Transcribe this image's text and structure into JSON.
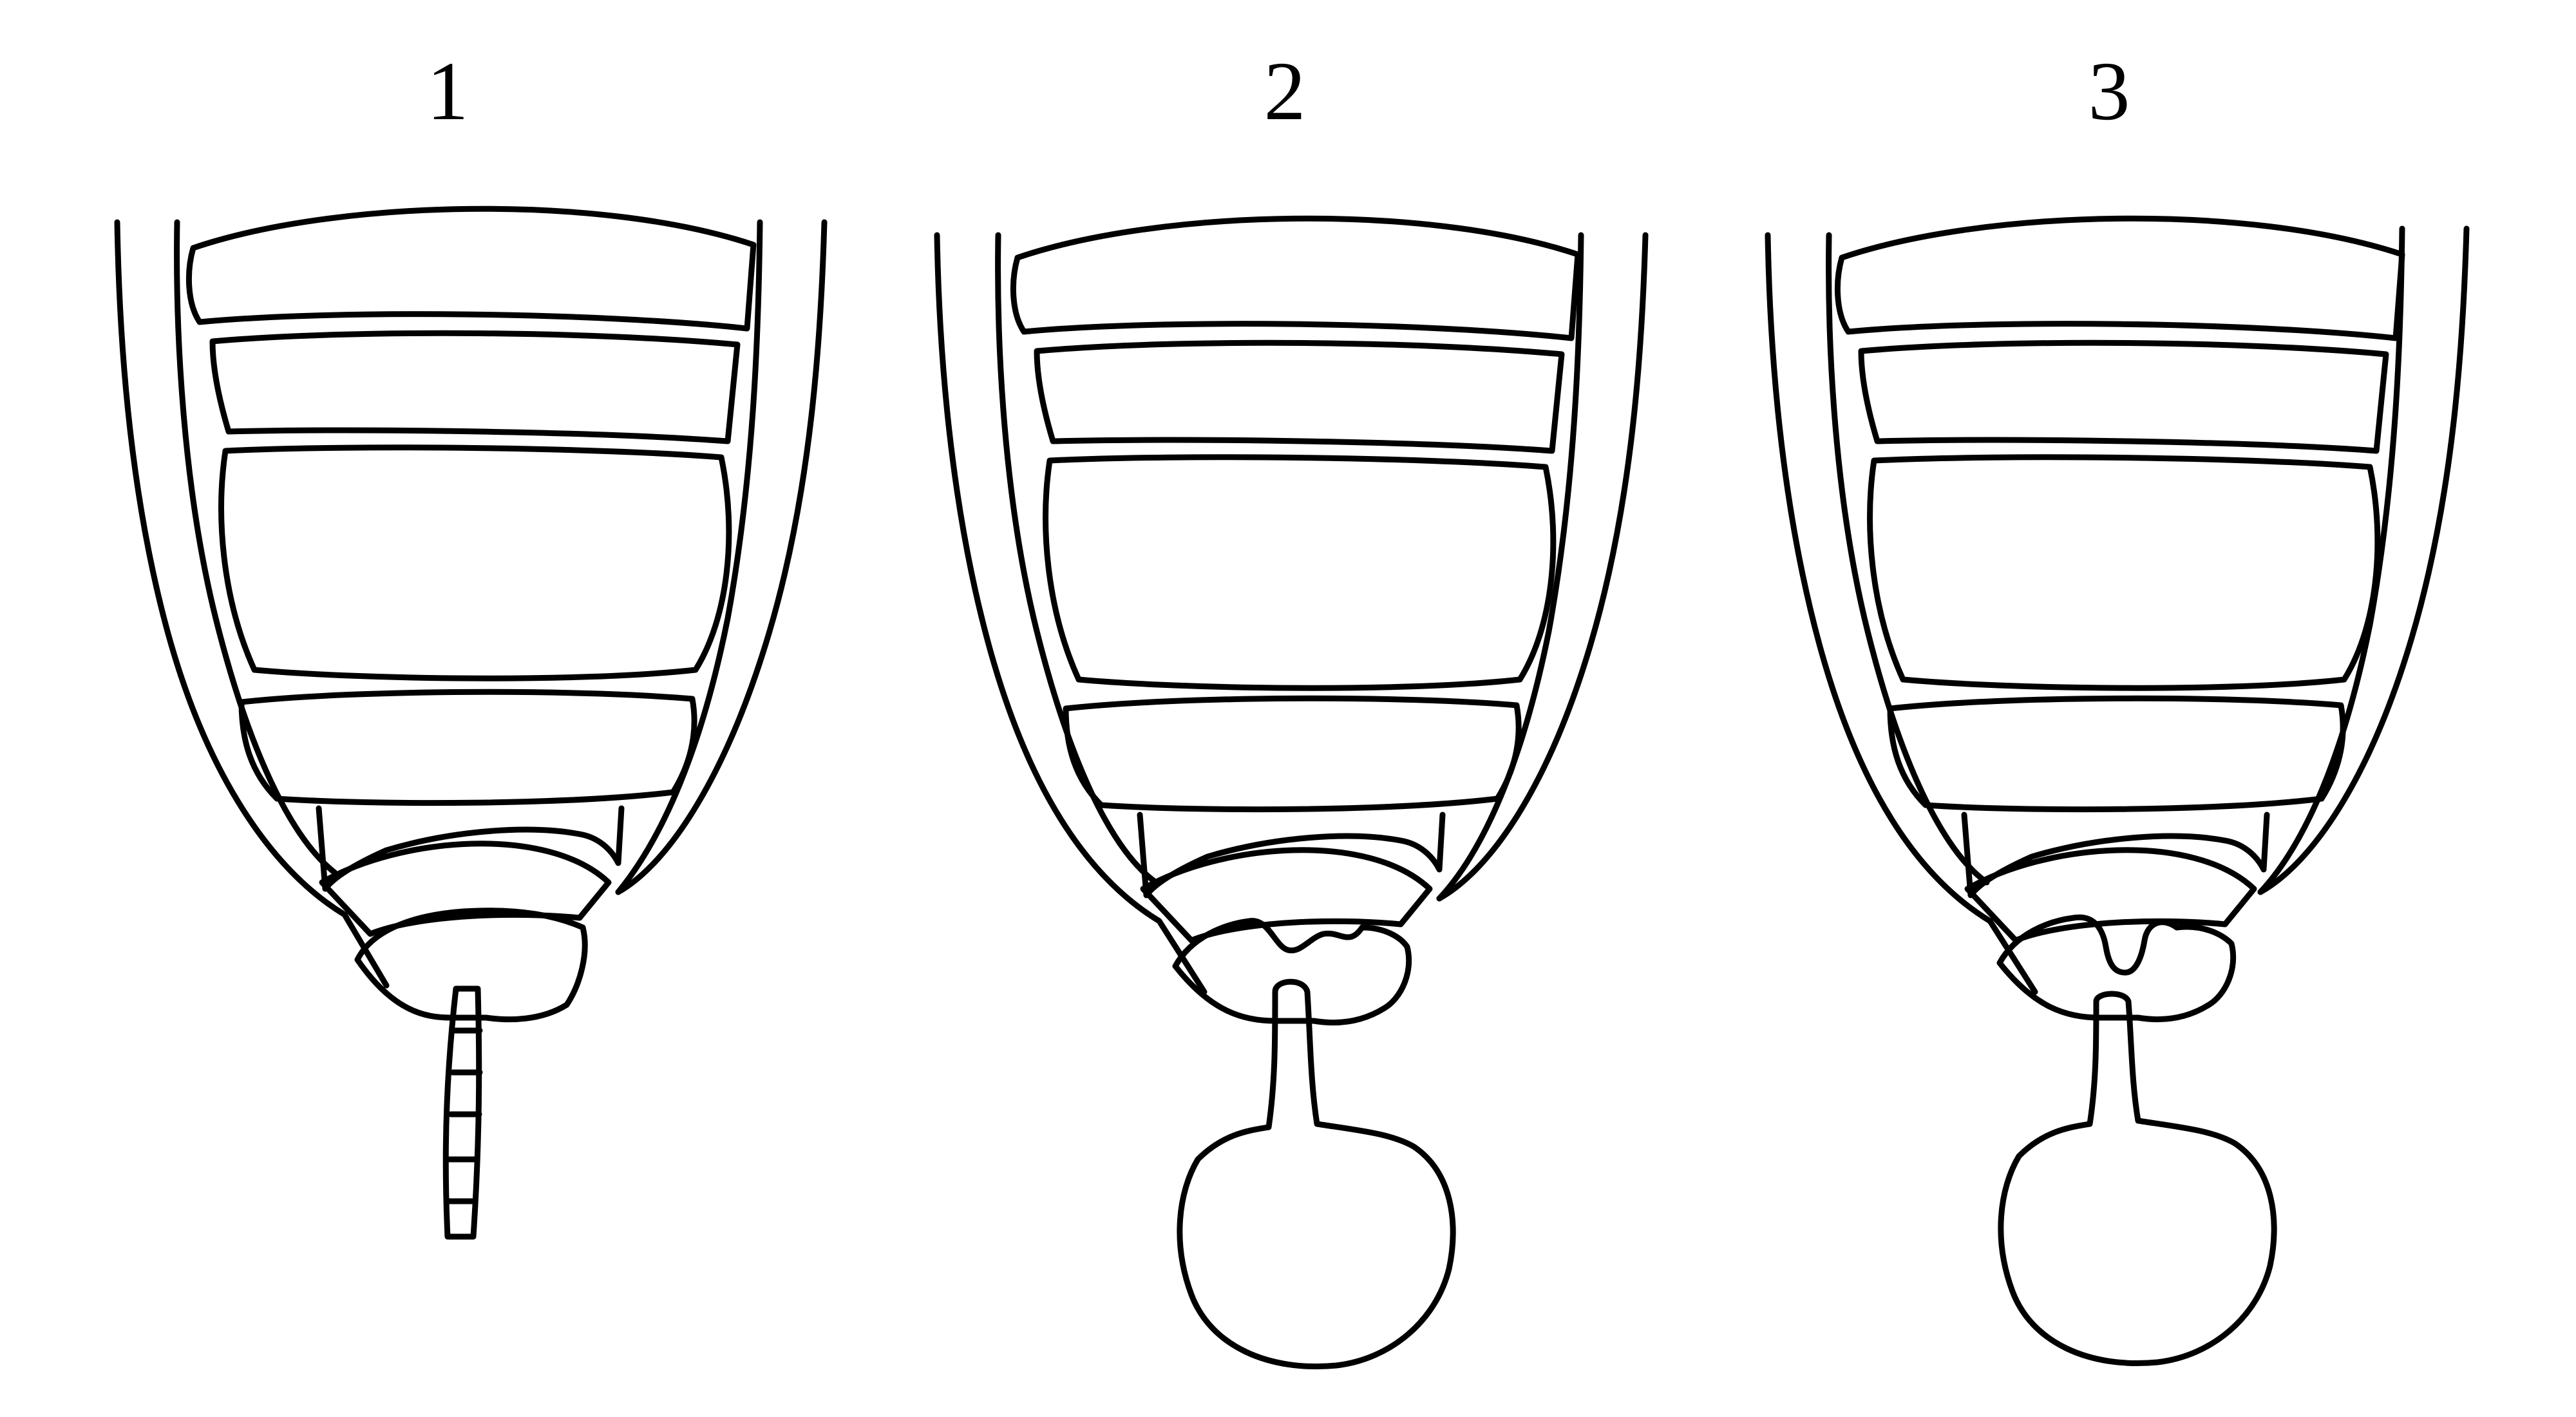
{
  "figure": {
    "panels": [
      {
        "label": "1",
        "variant": "segmented-tube"
      },
      {
        "label": "2",
        "variant": "bulb"
      },
      {
        "label": "3",
        "variant": "bulb-deep-notch"
      }
    ]
  },
  "colors": {
    "background": "#ffffff",
    "line": "#000000"
  }
}
